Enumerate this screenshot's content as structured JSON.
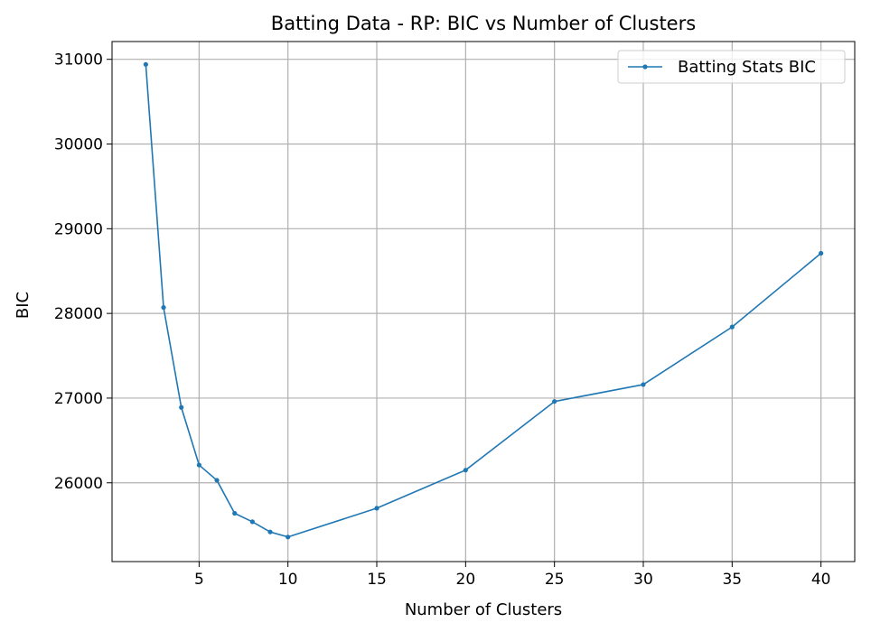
{
  "chart_data": {
    "type": "line",
    "title": "Batting Data - RP: BIC vs Number of Clusters",
    "xlabel": "Number of Clusters",
    "ylabel": "BIC",
    "xlim": [
      0.1,
      41.9
    ],
    "ylim": [
      25070,
      31210
    ],
    "xticks": [
      5,
      10,
      15,
      20,
      25,
      30,
      35,
      40
    ],
    "yticks": [
      26000,
      27000,
      28000,
      29000,
      30000,
      31000
    ],
    "grid": true,
    "legend_position": "top-right",
    "series": [
      {
        "name": "Batting Stats BIC",
        "color": "#1f77b4",
        "x": [
          2,
          3,
          4,
          5,
          6,
          7,
          8,
          9,
          10,
          15,
          20,
          25,
          30,
          35,
          40
        ],
        "y": [
          30940,
          28070,
          26890,
          26210,
          26030,
          25640,
          25540,
          25420,
          25360,
          25700,
          26150,
          26960,
          27160,
          27840,
          28710
        ]
      }
    ]
  }
}
